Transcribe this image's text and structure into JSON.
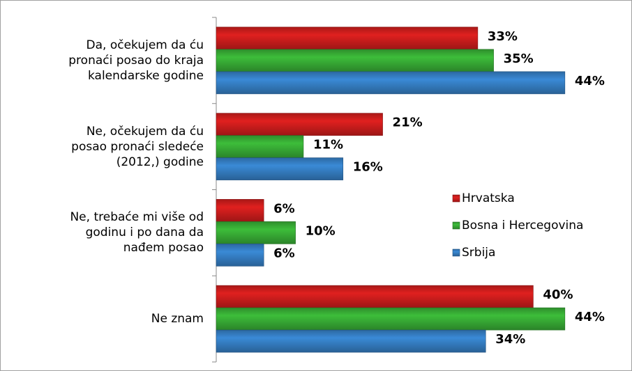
{
  "chart_data": {
    "type": "bar",
    "orientation": "horizontal",
    "categories": [
      "Da, očekujem da ću\npronaći posao do kraja\nkalendarske godine",
      "Ne, očekujem da ću\nposao pronaći sledeće\n(2012,) godine",
      "Ne, trebaće mi više od\ngodinu i po dana da\nnađem posao",
      "Ne znam"
    ],
    "series": [
      {
        "name": "Hrvatska",
        "color": "#e0201f",
        "values": [
          33,
          21,
          6,
          40
        ],
        "value_labels": [
          "33%",
          "21%",
          "6%",
          "40%"
        ]
      },
      {
        "name": "Bosna i Hercegovina",
        "color": "#3dbd3a",
        "values": [
          35,
          11,
          10,
          44
        ],
        "value_labels": [
          "35%",
          "11%",
          "10%",
          "44%"
        ]
      },
      {
        "name": "Srbija",
        "color": "#3a8ad6",
        "values": [
          44,
          16,
          6,
          34
        ],
        "value_labels": [
          "44%",
          "16%",
          "6%",
          "34%"
        ]
      }
    ],
    "xlim": [
      0,
      50
    ],
    "legend": "right"
  }
}
